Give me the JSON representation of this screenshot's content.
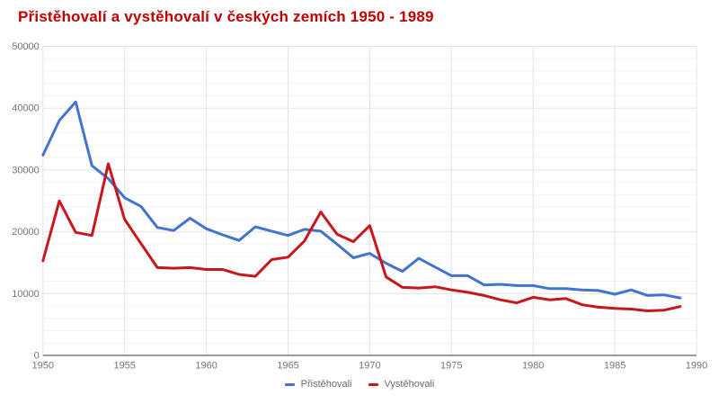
{
  "title": "Přistěhovalí a vystěhovalí v českých zemích 1950 - 1989",
  "title_color": "#c00000",
  "legend": {
    "position": "bottom",
    "items": [
      {
        "label": "Přistěhovali",
        "color": "#4274cf"
      },
      {
        "label": "Vystěhovali",
        "color": "#c8161d"
      }
    ]
  },
  "axis": {
    "tick_label_color": "#757575",
    "axis_line_color": "#3c3c3c",
    "major_grid_color": "#e3e3e3",
    "minor_grid_color": "#f4f4f4"
  },
  "chart_data": {
    "type": "line",
    "title": "Přistěhovalí a vystěhovalí v českých zemích 1950 - 1989",
    "xlabel": "",
    "ylabel": "",
    "xlim": [
      1950,
      1990
    ],
    "ylim": [
      0,
      50000
    ],
    "x_ticks": [
      1950,
      1955,
      1960,
      1965,
      1970,
      1975,
      1980,
      1985,
      1990
    ],
    "y_ticks": [
      0,
      10000,
      20000,
      30000,
      40000,
      50000
    ],
    "y_minor_step": 2000,
    "grid": true,
    "legend_position": "bottom",
    "x": [
      1950,
      1951,
      1952,
      1953,
      1954,
      1955,
      1956,
      1957,
      1958,
      1959,
      1960,
      1961,
      1962,
      1963,
      1964,
      1965,
      1966,
      1967,
      1968,
      1969,
      1970,
      1971,
      1972,
      1973,
      1974,
      1975,
      1976,
      1977,
      1978,
      1979,
      1980,
      1981,
      1982,
      1983,
      1984,
      1985,
      1986,
      1987,
      1988,
      1989
    ],
    "series": [
      {
        "name": "Přistěhovali",
        "color": "#4274cf",
        "values": [
          32400,
          38000,
          41000,
          30700,
          28600,
          25500,
          24100,
          20700,
          20200,
          22200,
          20500,
          19500,
          18600,
          20800,
          20100,
          19400,
          20400,
          20100,
          18000,
          15800,
          16500,
          14900,
          13600,
          15700,
          14300,
          12900,
          12900,
          11400,
          11500,
          11300,
          11300,
          10800,
          10800,
          10600,
          10500,
          9900,
          10600,
          9700,
          9800,
          9300
        ]
      },
      {
        "name": "Vystěhovali",
        "color": "#c8161d",
        "values": [
          15300,
          25000,
          19900,
          19400,
          31000,
          22000,
          18100,
          14200,
          14100,
          14200,
          13900,
          13900,
          13100,
          12800,
          15500,
          15900,
          18500,
          23200,
          19600,
          18400,
          21000,
          12700,
          11000,
          10900,
          11100,
          10600,
          10200,
          9700,
          9000,
          8500,
          9400,
          9000,
          9200,
          8200,
          7800,
          7600,
          7500,
          7200,
          7300,
          7900
        ]
      }
    ]
  }
}
